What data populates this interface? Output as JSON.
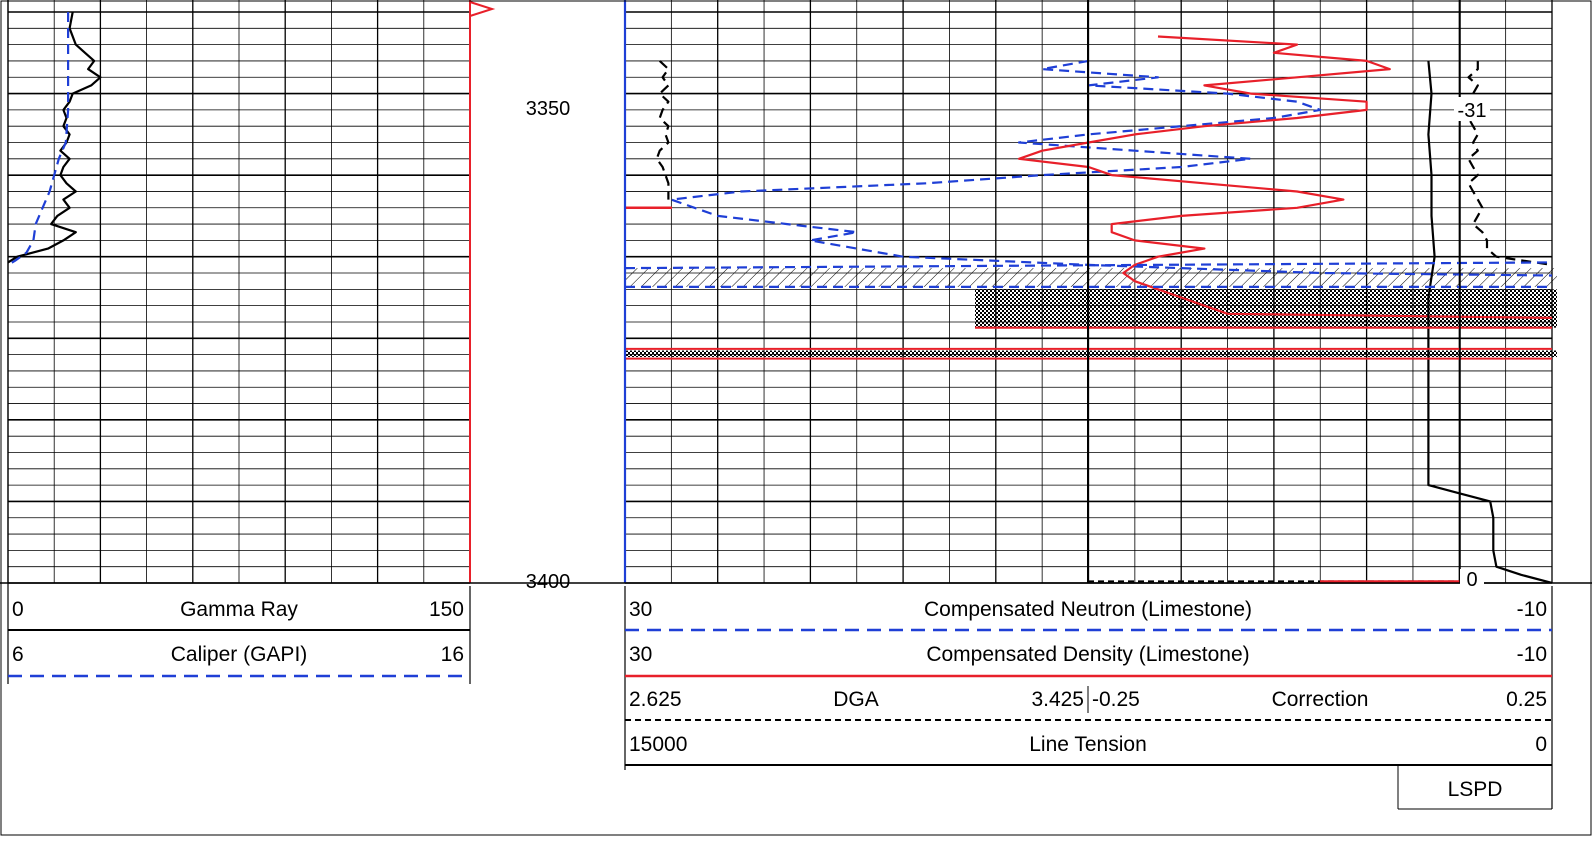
{
  "colors": {
    "grid": "#000000",
    "blue": "#1f3fd6",
    "red": "#e8202a",
    "black": "#000000",
    "background": "#ffffff"
  },
  "depth_labels": [
    "3350",
    "3400"
  ],
  "chart_data": [
    {
      "type": "line",
      "track": "left",
      "y_axis": "depth",
      "ylim": [
        3330,
        3400
      ],
      "series": [
        {
          "name": "Gamma Ray",
          "scale": [
            0,
            150
          ],
          "style": "solid",
          "color": "black",
          "points": [
            [
              3330,
              21
            ],
            [
              3332,
              20
            ],
            [
              3334,
              22
            ],
            [
              3335,
              25
            ],
            [
              3336,
              28
            ],
            [
              3337,
              26
            ],
            [
              3338,
              30
            ],
            [
              3339,
              27
            ],
            [
              3340,
              21
            ],
            [
              3341,
              20
            ],
            [
              3342,
              18
            ],
            [
              3343,
              19
            ],
            [
              3344,
              18
            ],
            [
              3345,
              20
            ],
            [
              3346,
              19
            ],
            [
              3347,
              17
            ],
            [
              3348,
              20
            ],
            [
              3349,
              18
            ],
            [
              3350,
              17
            ],
            [
              3351,
              19
            ],
            [
              3352,
              22
            ],
            [
              3353,
              18
            ],
            [
              3354,
              20
            ],
            [
              3355,
              16
            ],
            [
              3356,
              14
            ],
            [
              3357,
              22
            ],
            [
              3358,
              18
            ],
            [
              3359,
              13
            ],
            [
              3360,
              3
            ],
            [
              3360.7,
              0
            ]
          ]
        },
        {
          "name": "Caliper (GAPI)",
          "scale": [
            6,
            16
          ],
          "style": "dashed",
          "color": "blue",
          "points": [
            [
              3330,
              7.3
            ],
            [
              3334,
              7.3
            ],
            [
              3338,
              7.3
            ],
            [
              3342,
              7.3
            ],
            [
              3346,
              7.25
            ],
            [
              3348,
              7.1
            ],
            [
              3350,
              7.0
            ],
            [
              3352,
              6.9
            ],
            [
              3354,
              6.75
            ],
            [
              3356,
              6.6
            ],
            [
              3358,
              6.55
            ],
            [
              3359.5,
              6.4
            ],
            [
              3360.5,
              6.15
            ],
            [
              3361,
              6.0
            ]
          ]
        }
      ]
    },
    {
      "type": "line",
      "track": "right",
      "y_axis": "depth",
      "ylim": [
        3330,
        3400
      ],
      "series": [
        {
          "name": "Compensated Neutron (Limestone)",
          "scale": [
            30,
            -10
          ],
          "style": "dashed",
          "color": "blue",
          "points": [
            [
              3336,
              10
            ],
            [
              3337,
              12
            ],
            [
              3338,
              7
            ],
            [
              3339,
              10
            ],
            [
              3340,
              4
            ],
            [
              3341,
              1
            ],
            [
              3342,
              0
            ],
            [
              3343,
              2
            ],
            [
              3344,
              6
            ],
            [
              3345,
              10
            ],
            [
              3346,
              13
            ],
            [
              3347,
              8
            ],
            [
              3348,
              3
            ],
            [
              3349,
              6
            ],
            [
              3350,
              12
            ],
            [
              3351,
              17
            ],
            [
              3352,
              25
            ],
            [
              3353,
              28
            ],
            [
              3354,
              27
            ],
            [
              3355,
              26
            ],
            [
              3356,
              23
            ],
            [
              3357,
              20
            ],
            [
              3358,
              22
            ],
            [
              3359,
              20
            ],
            [
              3360,
              18
            ],
            [
              3361,
              10
            ],
            [
              3362,
              0
            ],
            [
              3362.3,
              -10
            ]
          ]
        },
        {
          "name": "Compensated Density (Limestone)",
          "scale": [
            30,
            -10
          ],
          "style": "solid",
          "color": "red",
          "points": [
            [
              3333,
              7
            ],
            [
              3334,
              1
            ],
            [
              3335,
              2
            ],
            [
              3336,
              -2
            ],
            [
              3337,
              -3
            ],
            [
              3338,
              1
            ],
            [
              3339,
              5
            ],
            [
              3340,
              3
            ],
            [
              3341,
              -2
            ],
            [
              3342,
              -2
            ],
            [
              3343,
              1
            ],
            [
              3344,
              5
            ],
            [
              3345,
              8
            ],
            [
              3346,
              10
            ],
            [
              3347,
              12
            ],
            [
              3348,
              13
            ],
            [
              3349,
              10
            ],
            [
              3350,
              9
            ],
            [
              3351,
              5
            ],
            [
              3352,
              1
            ],
            [
              3353,
              -1
            ],
            [
              3354,
              1
            ],
            [
              3355,
              6
            ],
            [
              3356,
              9
            ],
            [
              3357,
              9
            ],
            [
              3358,
              8
            ],
            [
              3359,
              5
            ],
            [
              3360,
              7
            ],
            [
              3361,
              8
            ],
            [
              3362,
              8.5
            ],
            [
              3363,
              8
            ],
            [
              3364,
              7
            ],
            [
              3365,
              6
            ],
            [
              3366,
              5
            ],
            [
              3367,
              4
            ],
            [
              3367.5,
              -10
            ]
          ]
        },
        {
          "name": "DGA",
          "scale": [
            2.625,
            3.425
          ],
          "style": "dashed",
          "color": "black",
          "points": [
            [
              3336,
              2.685
            ],
            [
              3337,
              2.7
            ],
            [
              3338,
              2.69
            ],
            [
              3339,
              2.7
            ],
            [
              3340,
              2.685
            ],
            [
              3341,
              2.7
            ],
            [
              3342,
              2.69
            ],
            [
              3343,
              2.685
            ],
            [
              3344,
              2.7
            ],
            [
              3345,
              2.695
            ],
            [
              3346,
              2.7
            ],
            [
              3347,
              2.685
            ],
            [
              3348,
              2.68
            ],
            [
              3349,
              2.69
            ],
            [
              3350,
              2.695
            ],
            [
              3351,
              2.7
            ],
            [
              3352,
              2.7
            ],
            [
              3353,
              2.7
            ]
          ]
        },
        {
          "name": "Correction",
          "scale": [
            -0.25,
            0.25
          ],
          "style": "dashed",
          "color": "black",
          "points": [
            [
              3336,
              0.17
            ],
            [
              3337,
              0.17
            ],
            [
              3338,
              0.16
            ],
            [
              3339,
              0.17
            ],
            [
              3340,
              0.165
            ],
            [
              3341,
              0.16
            ],
            [
              3342,
              0.17
            ],
            [
              3343,
              0.16
            ],
            [
              3344,
              0.165
            ],
            [
              3345,
              0.17
            ],
            [
              3346,
              0.165
            ],
            [
              3347,
              0.17
            ],
            [
              3348,
              0.16
            ],
            [
              3349,
              0.165
            ],
            [
              3350,
              0.17
            ],
            [
              3351,
              0.16
            ],
            [
              3352,
              0.165
            ],
            [
              3353,
              0.17
            ],
            [
              3354,
              0.175
            ],
            [
              3355,
              0.17
            ],
            [
              3356,
              0.165
            ],
            [
              3357,
              0.175
            ],
            [
              3358,
              0.18
            ],
            [
              3359,
              0.18
            ],
            [
              3360,
              0.19
            ],
            [
              3361,
              0.25
            ]
          ]
        },
        {
          "name": "Line Tension",
          "scale": [
            15000,
            0
          ],
          "style": "solid",
          "color": "black",
          "points": [
            [
              3336,
              2000
            ],
            [
              3340,
              1950
            ],
            [
              3345,
              2000
            ],
            [
              3350,
              1950
            ],
            [
              3355,
              1950
            ],
            [
              3360,
              1900
            ],
            [
              3365,
              2000
            ],
            [
              3370,
              2000
            ],
            [
              3375,
              2000
            ],
            [
              3380,
              2000
            ],
            [
              3385,
              2000
            ],
            [
              3388,
              2000
            ],
            [
              3389,
              1500
            ],
            [
              3390,
              1000
            ],
            [
              3392,
              950
            ],
            [
              3394,
              950
            ],
            [
              3396,
              950
            ],
            [
              3398,
              900
            ],
            [
              3399,
              500
            ],
            [
              3400,
              0
            ]
          ]
        }
      ]
    }
  ],
  "readouts": [
    "-31",
    "0"
  ],
  "legend": {
    "left": [
      {
        "min": "0",
        "name": "Gamma Ray",
        "max": "150"
      },
      {
        "min": "6",
        "name": "Caliper (GAPI)",
        "max": "16"
      }
    ],
    "right": [
      {
        "min": "30",
        "name": "Compensated Neutron (Limestone)",
        "max": "-10"
      },
      {
        "min": "30",
        "name": "Compensated Density (Limestone)",
        "max": "-10"
      }
    ],
    "dga": {
      "min": "2.625",
      "name": "DGA",
      "max": "3.425"
    },
    "correction": {
      "min": "-0.25",
      "name": "Correction",
      "max": "0.25"
    },
    "tension": {
      "min": "15000",
      "name": "Line Tension",
      "max": "0"
    },
    "lspd": "LSPD"
  }
}
